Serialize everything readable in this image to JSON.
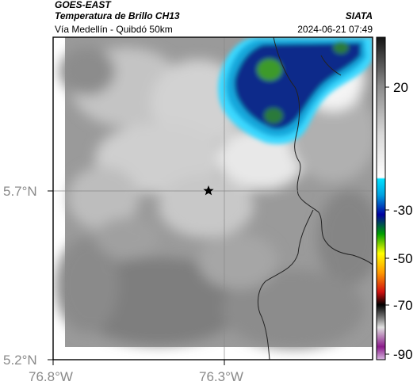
{
  "header": {
    "source": "GOES-EAST",
    "product": "Temperatura de Brillo CH13",
    "organization": "SIATA",
    "region": "Vía Medellín - Quibdó 50km",
    "datetime": "2024-06-21 07:49"
  },
  "axes": {
    "lat_ticks": [
      "5.7°N",
      "5.2°N"
    ],
    "lon_ticks": [
      "76.8°W",
      "76.3°W"
    ]
  },
  "colorbar": {
    "labels": [
      "20",
      "-30",
      "-50",
      "-70",
      "-90"
    ]
  },
  "colors": {
    "deep_cloud": "#0a2a8a",
    "cloud_core": "#3e9a2c",
    "cloud_edge": "#12b3e0",
    "ground": "#7a7a7a",
    "warm_cloud": "#e6e6e6"
  }
}
